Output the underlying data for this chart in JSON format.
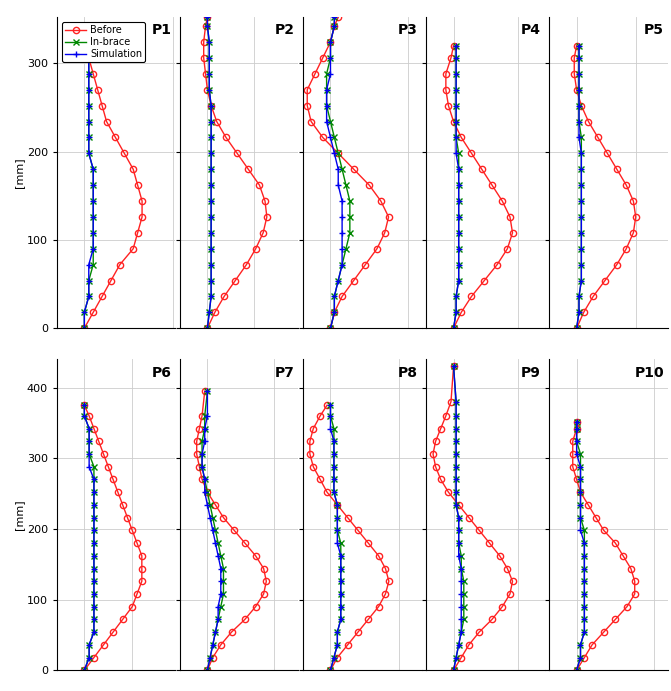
{
  "row1": [
    "P1",
    "P2",
    "P3",
    "P4",
    "P5"
  ],
  "row2": [
    "P6",
    "P7",
    "P8",
    "P9",
    "P10"
  ],
  "ylabel": "[mm]",
  "colors": {
    "before": "#FF2222",
    "inbrace": "#008800",
    "simulation": "#0000EE"
  },
  "data": {
    "P1": {
      "y": [
        0,
        18,
        36,
        54,
        72,
        90,
        108,
        126,
        144,
        162,
        180,
        198,
        216,
        234,
        252,
        270,
        288,
        306,
        324,
        333
      ],
      "before": [
        0,
        2,
        4,
        6,
        8,
        11,
        12,
        13,
        13,
        12,
        11,
        9,
        7,
        5,
        4,
        3,
        2,
        1,
        0,
        0
      ],
      "inbrace": [
        0,
        0,
        1,
        1,
        2,
        2,
        2,
        2,
        2,
        2,
        2,
        1,
        1,
        1,
        1,
        1,
        1,
        1,
        1,
        1
      ],
      "simulation": [
        0,
        0,
        1,
        1,
        1,
        2,
        2,
        2,
        2,
        2,
        2,
        1,
        1,
        1,
        1,
        1,
        1,
        1,
        1,
        1
      ]
    },
    "P2": {
      "y": [
        0,
        18,
        36,
        54,
        72,
        90,
        108,
        126,
        144,
        162,
        180,
        198,
        216,
        234,
        252,
        270,
        288,
        306,
        324,
        342,
        352
      ],
      "before": [
        0,
        4,
        9,
        15,
        21,
        26,
        30,
        32,
        31,
        28,
        22,
        16,
        10,
        5,
        2,
        0,
        -1,
        -2,
        -2,
        -1,
        0
      ],
      "inbrace": [
        0,
        1,
        2,
        2,
        2,
        2,
        2,
        2,
        2,
        2,
        2,
        2,
        2,
        2,
        2,
        1,
        1,
        1,
        1,
        0,
        0
      ],
      "simulation": [
        0,
        1,
        2,
        2,
        2,
        2,
        2,
        2,
        2,
        2,
        2,
        2,
        2,
        2,
        2,
        1,
        1,
        1,
        1,
        0,
        0
      ]
    },
    "P3": {
      "y": [
        0,
        18,
        36,
        54,
        72,
        90,
        108,
        126,
        144,
        162,
        180,
        198,
        216,
        234,
        252,
        270,
        288,
        306,
        324,
        342,
        352
      ],
      "before": [
        0,
        1,
        3,
        6,
        9,
        12,
        14,
        15,
        13,
        10,
        6,
        2,
        -2,
        -5,
        -6,
        -6,
        -4,
        -2,
        0,
        1,
        2
      ],
      "inbrace": [
        0,
        1,
        1,
        2,
        3,
        4,
        5,
        5,
        5,
        4,
        3,
        2,
        1,
        0,
        -1,
        -1,
        -1,
        0,
        0,
        1,
        1
      ],
      "simulation": [
        0,
        1,
        1,
        2,
        3,
        3,
        3,
        3,
        3,
        2,
        2,
        1,
        0,
        -1,
        -1,
        -1,
        0,
        0,
        0,
        1,
        1
      ]
    },
    "P4": {
      "y": [
        0,
        18,
        36,
        54,
        72,
        90,
        108,
        126,
        144,
        162,
        180,
        198,
        216,
        234,
        252,
        270,
        288,
        306,
        320
      ],
      "before": [
        0,
        3,
        7,
        12,
        17,
        21,
        23,
        22,
        19,
        15,
        11,
        7,
        3,
        0,
        -2,
        -3,
        -3,
        -1,
        0
      ],
      "inbrace": [
        0,
        1,
        1,
        2,
        2,
        2,
        2,
        2,
        2,
        2,
        2,
        2,
        1,
        1,
        1,
        1,
        1,
        1,
        1
      ],
      "simulation": [
        0,
        1,
        1,
        2,
        2,
        2,
        2,
        2,
        2,
        2,
        2,
        1,
        1,
        1,
        1,
        1,
        1,
        1,
        1
      ]
    },
    "P5": {
      "y": [
        0,
        18,
        36,
        54,
        72,
        90,
        108,
        126,
        144,
        162,
        180,
        198,
        216,
        234,
        252,
        270,
        288,
        306,
        320
      ],
      "before": [
        0,
        3,
        7,
        12,
        17,
        21,
        24,
        25,
        24,
        21,
        17,
        13,
        9,
        5,
        2,
        0,
        -1,
        -1,
        0
      ],
      "inbrace": [
        0,
        1,
        1,
        2,
        2,
        2,
        2,
        2,
        2,
        2,
        2,
        2,
        2,
        1,
        1,
        1,
        1,
        1,
        1
      ],
      "simulation": [
        0,
        1,
        1,
        2,
        2,
        2,
        2,
        2,
        2,
        2,
        2,
        2,
        1,
        1,
        1,
        1,
        1,
        1,
        1
      ]
    },
    "P6": {
      "y": [
        0,
        18,
        36,
        54,
        72,
        90,
        108,
        126,
        144,
        162,
        180,
        198,
        216,
        234,
        252,
        270,
        288,
        306,
        324,
        342,
        360,
        375
      ],
      "before": [
        0,
        2,
        4,
        6,
        8,
        10,
        11,
        12,
        12,
        12,
        11,
        10,
        9,
        8,
        7,
        6,
        5,
        4,
        3,
        2,
        1,
        0
      ],
      "inbrace": [
        0,
        1,
        1,
        2,
        2,
        2,
        2,
        2,
        2,
        2,
        2,
        2,
        2,
        2,
        2,
        2,
        2,
        1,
        1,
        1,
        0,
        0
      ],
      "simulation": [
        0,
        1,
        1,
        2,
        2,
        2,
        2,
        2,
        2,
        2,
        2,
        2,
        2,
        2,
        2,
        2,
        1,
        1,
        1,
        1,
        0,
        0
      ]
    },
    "P7": {
      "y": [
        0,
        18,
        36,
        54,
        72,
        90,
        108,
        126,
        144,
        162,
        180,
        198,
        216,
        234,
        252,
        270,
        288,
        306,
        324,
        342,
        360,
        395
      ],
      "before": [
        0,
        2,
        5,
        9,
        14,
        18,
        21,
        22,
        21,
        18,
        14,
        10,
        6,
        3,
        0,
        -2,
        -3,
        -4,
        -4,
        -3,
        -2,
        -1
      ],
      "inbrace": [
        0,
        1,
        2,
        3,
        4,
        5,
        6,
        6,
        6,
        5,
        4,
        3,
        2,
        1,
        0,
        -1,
        -2,
        -2,
        -2,
        -1,
        -1,
        0
      ],
      "simulation": [
        0,
        1,
        2,
        3,
        4,
        4,
        5,
        5,
        5,
        4,
        3,
        2,
        1,
        0,
        -1,
        -1,
        -2,
        -2,
        -1,
        -1,
        0,
        0
      ]
    },
    "P8": {
      "y": [
        0,
        18,
        36,
        54,
        72,
        90,
        108,
        126,
        144,
        162,
        180,
        198,
        216,
        234,
        252,
        270,
        288,
        306,
        324,
        342,
        360,
        375
      ],
      "before": [
        0,
        2,
        5,
        8,
        11,
        14,
        16,
        17,
        16,
        14,
        11,
        8,
        5,
        2,
        -1,
        -3,
        -5,
        -6,
        -6,
        -5,
        -3,
        -1
      ],
      "inbrace": [
        0,
        1,
        2,
        2,
        3,
        3,
        3,
        3,
        3,
        3,
        3,
        2,
        2,
        2,
        1,
        1,
        1,
        1,
        1,
        1,
        0,
        0
      ],
      "simulation": [
        0,
        1,
        2,
        2,
        3,
        3,
        3,
        3,
        3,
        3,
        2,
        2,
        2,
        2,
        1,
        1,
        1,
        1,
        1,
        0,
        0,
        0
      ]
    },
    "P9": {
      "y": [
        0,
        18,
        36,
        54,
        72,
        90,
        108,
        126,
        144,
        162,
        180,
        198,
        216,
        234,
        252,
        270,
        288,
        306,
        324,
        342,
        360,
        380,
        430
      ],
      "before": [
        0,
        3,
        6,
        10,
        15,
        19,
        22,
        23,
        21,
        18,
        14,
        10,
        6,
        2,
        -2,
        -5,
        -7,
        -8,
        -7,
        -5,
        -3,
        -1,
        0
      ],
      "inbrace": [
        0,
        1,
        2,
        3,
        4,
        4,
        4,
        4,
        3,
        3,
        2,
        2,
        2,
        1,
        1,
        1,
        1,
        1,
        1,
        1,
        1,
        1,
        0
      ],
      "simulation": [
        0,
        1,
        2,
        3,
        3,
        3,
        3,
        3,
        3,
        2,
        2,
        2,
        2,
        1,
        1,
        1,
        1,
        1,
        1,
        1,
        1,
        1,
        0
      ]
    },
    "P10": {
      "y": [
        0,
        18,
        36,
        54,
        72,
        90,
        108,
        126,
        144,
        162,
        180,
        198,
        216,
        234,
        252,
        270,
        288,
        306,
        324,
        342,
        352
      ],
      "before": [
        0,
        2,
        4,
        7,
        10,
        13,
        15,
        15,
        14,
        12,
        10,
        7,
        5,
        3,
        1,
        0,
        -1,
        -1,
        -1,
        0,
        0
      ],
      "inbrace": [
        0,
        1,
        1,
        2,
        2,
        2,
        2,
        2,
        2,
        2,
        2,
        2,
        1,
        1,
        1,
        1,
        1,
        1,
        0,
        0,
        0
      ],
      "simulation": [
        0,
        1,
        1,
        2,
        2,
        2,
        2,
        2,
        2,
        2,
        2,
        1,
        1,
        1,
        1,
        1,
        1,
        0,
        0,
        0,
        0
      ]
    }
  },
  "ylims_row1": [
    0,
    352
  ],
  "ylims_row2": [
    0,
    440
  ],
  "yticks_row1": [
    0,
    100,
    200,
    300
  ],
  "yticks_row2": [
    0,
    100,
    200,
    300,
    400
  ]
}
